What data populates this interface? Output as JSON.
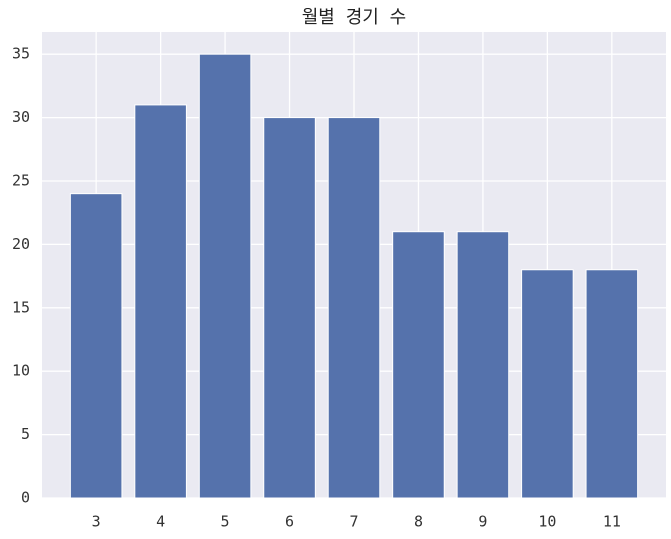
{
  "chart_data": {
    "type": "bar",
    "title": "월별 경기 수",
    "x": [
      3,
      4,
      5,
      6,
      7,
      8,
      9,
      10,
      11
    ],
    "values": [
      24,
      31,
      35,
      30,
      30,
      21,
      21,
      18,
      18
    ],
    "color": "#5572ac",
    "xlim": [
      2.16,
      11.84
    ],
    "xticks": [
      3,
      4,
      5,
      6,
      7,
      8,
      9,
      10,
      11
    ],
    "ylim": [
      0,
      36.75
    ],
    "yticks": [
      0,
      5,
      10,
      15,
      20,
      25,
      30,
      35
    ],
    "grid": true
  }
}
